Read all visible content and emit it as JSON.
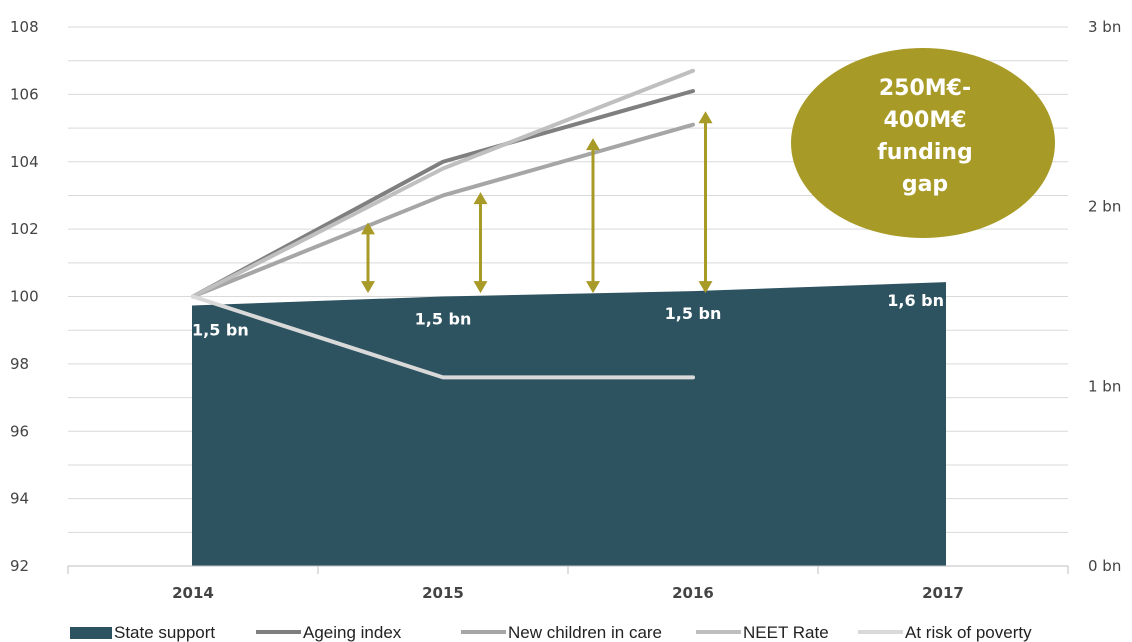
{
  "chart_data": {
    "type": "area",
    "x_categories": [
      "2014",
      "2015",
      "2016",
      "2017"
    ],
    "y_left": {
      "ticks": [
        "92",
        "94",
        "96",
        "98",
        "100",
        "102",
        "104",
        "106",
        "108"
      ],
      "lim": [
        92,
        108
      ]
    },
    "y_right": {
      "ticks": [
        "0 bn",
        "1 bn",
        "2 bn",
        "3 bn"
      ],
      "lim": [
        0,
        3
      ]
    },
    "series": [
      {
        "name": "State support",
        "kind": "area",
        "axis": "right",
        "color": "#2d5260",
        "values": [
          1.45,
          1.5,
          1.53,
          1.58
        ],
        "labels": [
          "1,5 bn",
          "1,5 bn",
          "1,5 bn",
          "1,6 bn"
        ]
      },
      {
        "name": "Ageing index",
        "kind": "line",
        "axis": "left",
        "color": "#7f7f7f",
        "values": [
          100,
          104,
          106.1,
          null
        ]
      },
      {
        "name": "New children in care",
        "kind": "line",
        "axis": "left",
        "color": "#a6a6a6",
        "values": [
          100,
          103,
          105.1,
          null
        ]
      },
      {
        "name": "NEET Rate",
        "kind": "line",
        "axis": "left",
        "color": "#bfbfbf",
        "values": [
          100,
          103.8,
          106.7,
          null
        ]
      },
      {
        "name": "At risk of poverty",
        "kind": "line",
        "axis": "left",
        "color": "#d9d9d9",
        "values": [
          100,
          97.6,
          97.6,
          null
        ]
      }
    ],
    "gap_arrows": [
      {
        "x": 0.7,
        "from": 100.1,
        "to": 102.2
      },
      {
        "x": 1.15,
        "from": 100.1,
        "to": 103.1
      },
      {
        "x": 1.6,
        "from": 100.1,
        "to": 104.7
      },
      {
        "x": 2.05,
        "from": 100.1,
        "to": 105.5
      }
    ],
    "arrow_color": "#a89a26",
    "annotation": {
      "lines": [
        "250M€-",
        "400M€",
        "funding",
        "gap"
      ],
      "color": "#a89a26"
    },
    "grid": true,
    "legend_position": "bottom"
  }
}
